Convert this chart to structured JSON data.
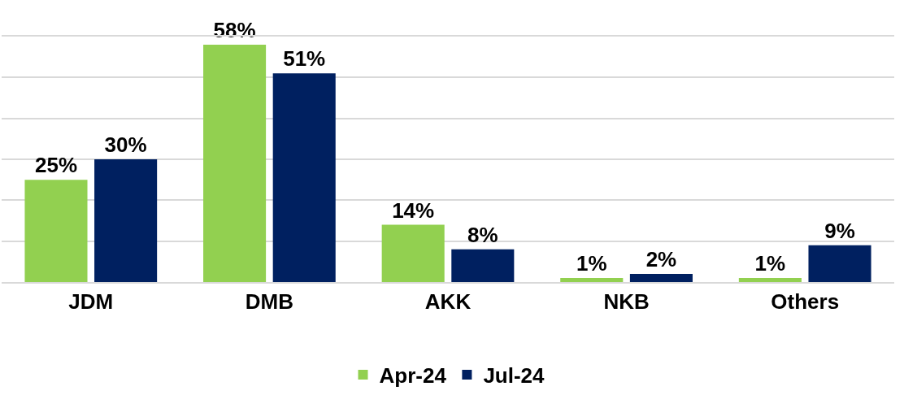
{
  "chart_data": {
    "type": "bar",
    "categories": [
      "JDM",
      "DMB",
      "AKK",
      "NKB",
      "Others"
    ],
    "series": [
      {
        "name": "Apr-24",
        "color": "#92d050",
        "values": [
          25,
          58,
          14,
          1,
          1
        ],
        "value_labels": [
          "25%",
          "58%",
          "14%",
          "1%",
          "1%"
        ]
      },
      {
        "name": "Jul-24",
        "color": "#002060",
        "values": [
          30,
          51,
          8,
          2,
          9
        ],
        "value_labels": [
          "30%",
          "51%",
          "8%",
          "2%",
          "9%"
        ]
      }
    ],
    "ylim": [
      0,
      60
    ],
    "yticks": [
      {
        "value": 0,
        "label": null
      },
      {
        "value": 10,
        "label": null
      },
      {
        "value": 20,
        "label": null
      },
      {
        "value": 30,
        "label": null
      },
      {
        "value": 40,
        "label": null
      },
      {
        "value": 50,
        "label": null
      },
      {
        "value": 60,
        "label": null
      }
    ],
    "grid": "y",
    "legend": "bottom",
    "tick_labels": "x"
  }
}
